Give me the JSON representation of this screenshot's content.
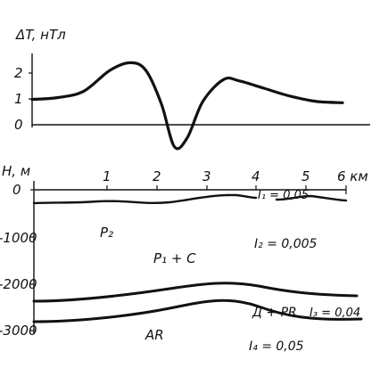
{
  "top_panel": {
    "ylabel": "ΔT, нТл",
    "y_ticks": [
      "2",
      "1",
      "0"
    ]
  },
  "section": {
    "depth_label": "H, м",
    "depth_ticks": [
      "0",
      "-1000",
      "-2000",
      "-3000"
    ],
    "distance_ticks": [
      "1",
      "2",
      "3",
      "4",
      "5"
    ],
    "distance_unit": "6 км",
    "units": {
      "p2": "P₂",
      "p1c": "P₁ + C",
      "dpr": "Д + PR",
      "ar": "AR"
    },
    "magnetization": {
      "i1": "I₁ = 0,05",
      "i2": "I₂ = 0,005",
      "i3": "I₃ = 0,04",
      "i4": "I₄ = 0,05"
    }
  },
  "chart_data": {
    "type": "line",
    "ylabel": "ΔT, нТл",
    "yticks": [
      0,
      1,
      2
    ],
    "x": [
      0,
      0.5,
      1.0,
      1.5,
      1.9,
      2.2,
      2.5,
      2.75,
      3.0,
      3.3,
      3.7,
      4.0,
      4.5,
      5.0,
      5.5,
      6.0
    ],
    "series": [
      {
        "values": [
          0.98,
          1.05,
          1.3,
          2.1,
          2.4,
          2.1,
          0.8,
          -0.85,
          -0.5,
          0.9,
          1.75,
          1.7,
          1.4,
          1.1,
          0.9,
          0.85
        ]
      }
    ]
  }
}
